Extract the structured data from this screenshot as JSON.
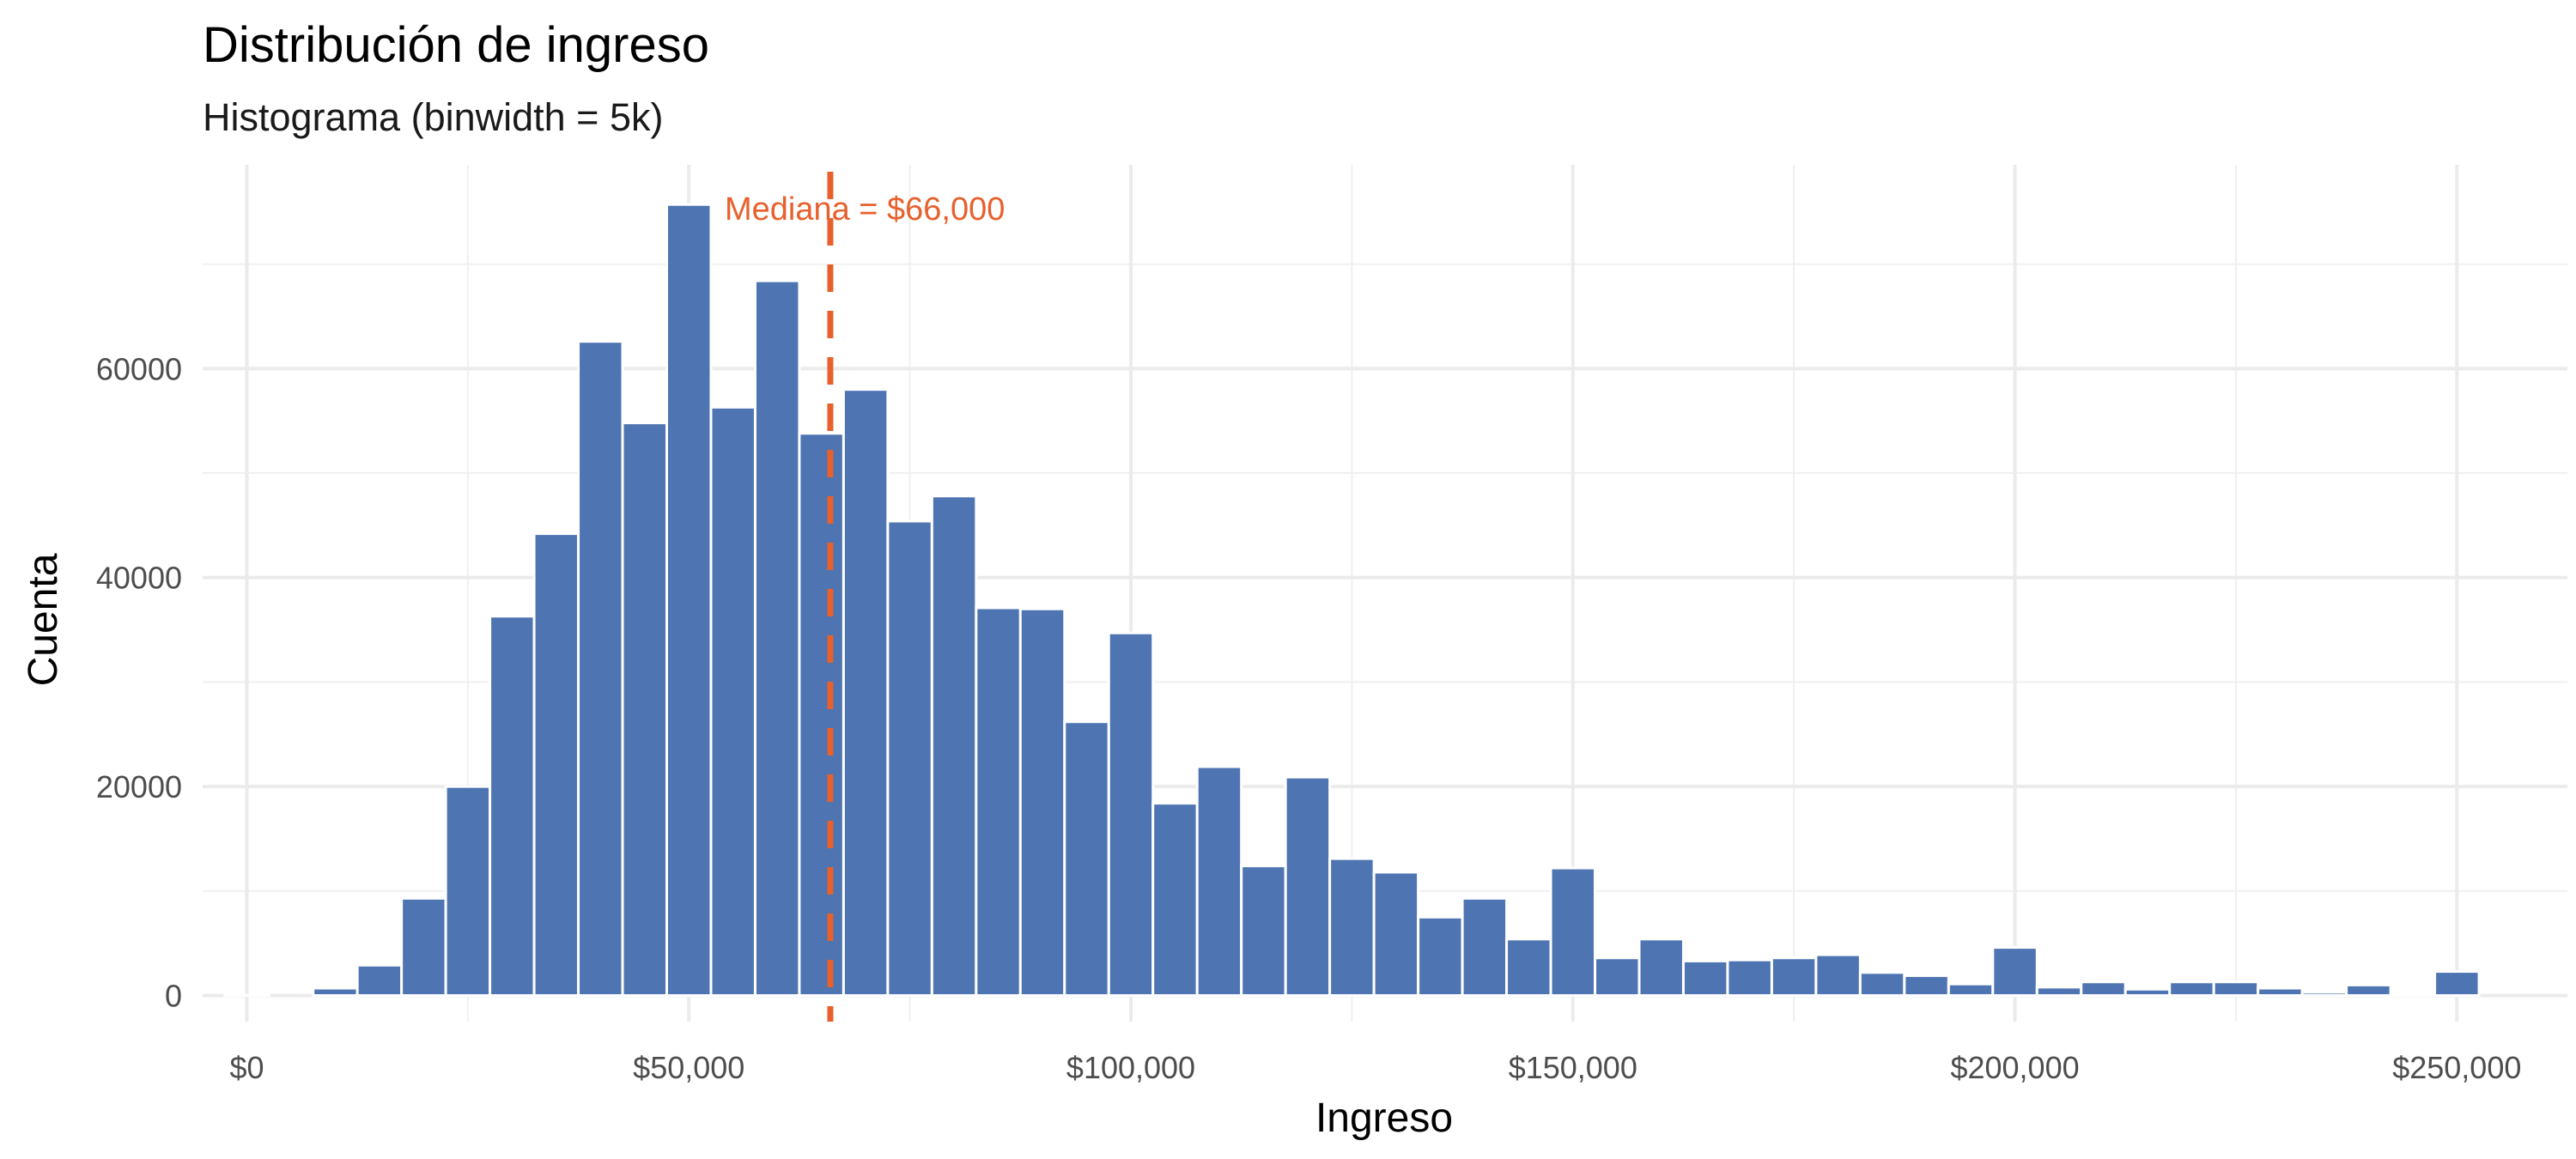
{
  "chart_data": {
    "type": "bar",
    "title": "Distribución de ingreso",
    "subtitle": "Histograma (binwidth = 5k)",
    "xlabel": "Ingreso",
    "ylabel": "Cuenta",
    "binwidth": 5000,
    "xlim": [
      -5000,
      262500
    ],
    "ylim": [
      -2500,
      79500
    ],
    "x_ticks": [
      0,
      50000,
      100000,
      150000,
      200000,
      250000
    ],
    "x_tick_labels": [
      "$0",
      "$50,000",
      "$100,000",
      "$150,000",
      "$200,000",
      "$250,000"
    ],
    "y_ticks": [
      0,
      20000,
      40000,
      60000
    ],
    "y_tick_labels": [
      "0",
      "20000",
      "40000",
      "60000"
    ],
    "grid": true,
    "legend": "none",
    "bar_color": "#4E74B2",
    "bar_outline": "#ffffff",
    "bins_center": [
      0,
      10000,
      15000,
      20000,
      25000,
      30000,
      35000,
      40000,
      45000,
      50000,
      55000,
      60000,
      65000,
      70000,
      75000,
      80000,
      85000,
      90000,
      95000,
      100000,
      105000,
      110000,
      115000,
      120000,
      125000,
      130000,
      135000,
      140000,
      145000,
      150000,
      155000,
      160000,
      165000,
      170000,
      175000,
      180000,
      185000,
      190000,
      195000,
      200000,
      205000,
      210000,
      215000,
      220000,
      225000,
      230000,
      235000,
      240000,
      245000,
      250000
    ],
    "counts": [
      50,
      700,
      2900,
      9300,
      20000,
      36300,
      44200,
      62600,
      54800,
      75700,
      56300,
      68400,
      53800,
      58000,
      45400,
      47800,
      37100,
      37000,
      26200,
      34700,
      18400,
      21900,
      12400,
      20900,
      13100,
      11800,
      7500,
      9300,
      5400,
      12200,
      3600,
      5400,
      3300,
      3400,
      3600,
      3900,
      2200,
      1900,
      1100,
      4600,
      800,
      1300,
      600,
      1300,
      1300,
      700,
      300,
      1000,
      100,
      2300
    ],
    "annotations": [
      {
        "type": "vline",
        "x": 66000,
        "color": "#E8602C",
        "linestyle": "dashed",
        "label": "Mediana = $66,000"
      }
    ]
  }
}
